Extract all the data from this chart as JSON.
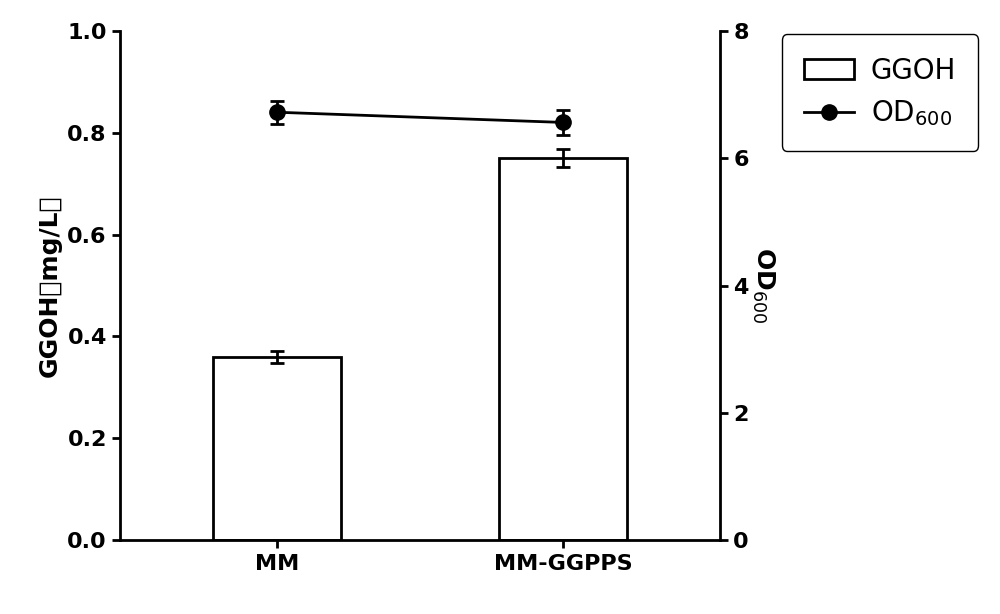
{
  "categories": [
    "MM",
    "MM-GGPPS"
  ],
  "bar_values": [
    0.36,
    0.75
  ],
  "bar_errors": [
    0.012,
    0.018
  ],
  "od_values": [
    6.72,
    6.56
  ],
  "od_errors": [
    0.18,
    0.2
  ],
  "bar_color": "#ffffff",
  "bar_edgecolor": "#000000",
  "line_color": "#000000",
  "marker_color": "#000000",
  "ylabel_left": "GGOH（mg/L）",
  "ylabel_right": "OD$_{600}$",
  "ylim_left": [
    0.0,
    1.0
  ],
  "ylim_right": [
    0,
    8
  ],
  "yticks_left": [
    0.0,
    0.2,
    0.4,
    0.6,
    0.8,
    1.0
  ],
  "yticks_right": [
    0,
    2,
    4,
    6,
    8
  ],
  "legend_ggoh": "GGOH",
  "legend_od": "OD$_{600}$",
  "bar_width": 0.45,
  "x_positions": [
    0,
    1
  ],
  "label_fontsize": 18,
  "tick_fontsize": 16,
  "legend_fontsize": 20,
  "linewidth": 2.0,
  "bar_linewidth": 2.0
}
